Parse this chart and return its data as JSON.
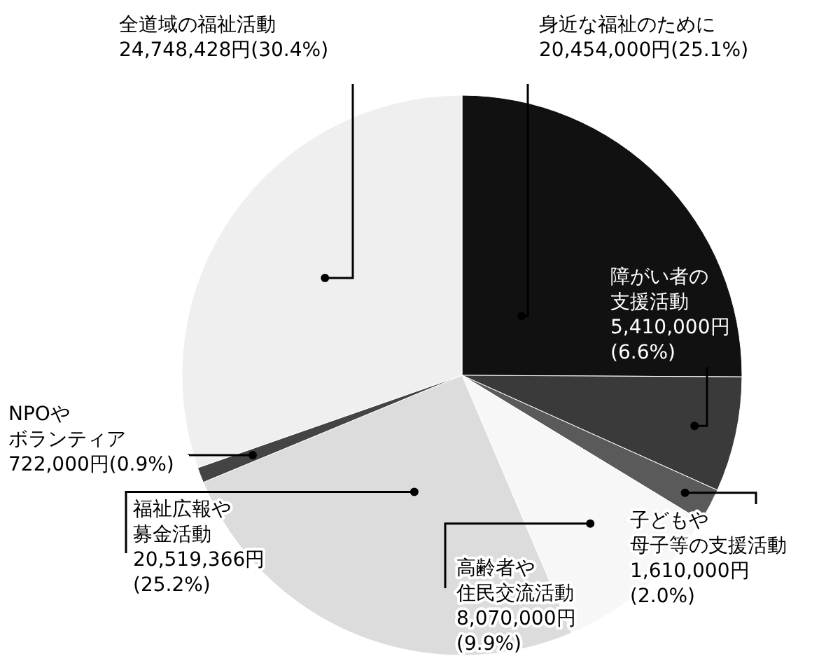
{
  "chart_data": {
    "type": "pie",
    "categories": [
      "身近な福祉のために",
      "障がい者の支援活動",
      "子どもや母子等の支援活動",
      "高齢者や住民交流活動",
      "福祉広報や募金活動",
      "NPOやボランティア",
      "全道域の福祉活動"
    ],
    "values": [
      20454000,
      5410000,
      1610000,
      8070000,
      20519366,
      722000,
      24748428
    ],
    "value_labels": [
      "20,454,000円(25.1%)",
      "5,410,000円(6.6%)",
      "1,610,000円(2.0%)",
      "8,070,000円(9.9%)",
      "20,519,366円(25.2%)",
      "722,000円(0.9%)",
      "24,748,428円(30.4%)"
    ],
    "colors": [
      "#111111",
      "#3a3a3a",
      "#5a5a5a",
      "#f7f7f7",
      "#dcdcdc",
      "#444444",
      "#efefef"
    ]
  }
}
